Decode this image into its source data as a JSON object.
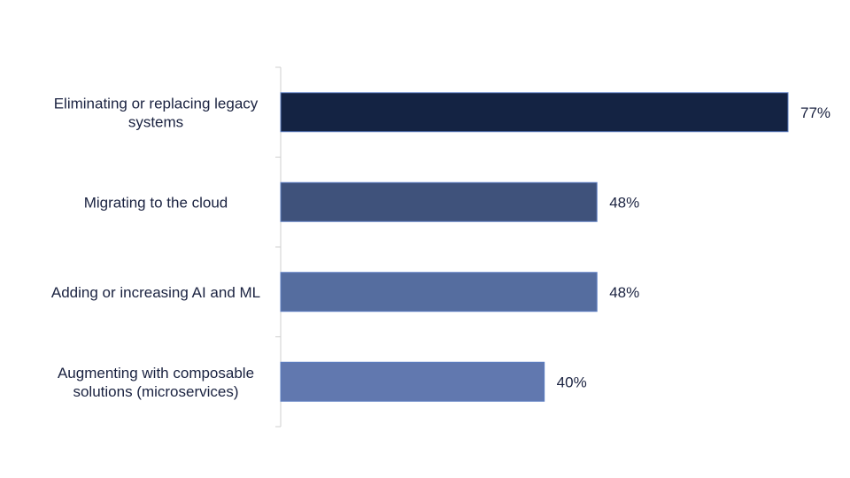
{
  "chart_data": {
    "type": "bar",
    "orientation": "horizontal",
    "categories": [
      [
        "Eliminating or replacing legacy",
        "systems"
      ],
      [
        "Migrating to the cloud"
      ],
      [
        "Adding or increasing AI and ML"
      ],
      [
        "Augmenting with composable",
        "solutions (microservices)"
      ]
    ],
    "values": [
      77,
      48,
      48,
      40
    ],
    "value_labels": [
      "77%",
      "48%",
      "48%",
      "40%"
    ],
    "unit": "%",
    "xlim": [
      0,
      77
    ],
    "colors": [
      "#142343",
      "#3f527b",
      "#556d9f",
      "#6178af"
    ],
    "bar_border": "#5b7dc2",
    "grid": false,
    "legend": "none",
    "title": "",
    "xlabel": "",
    "ylabel": ""
  }
}
